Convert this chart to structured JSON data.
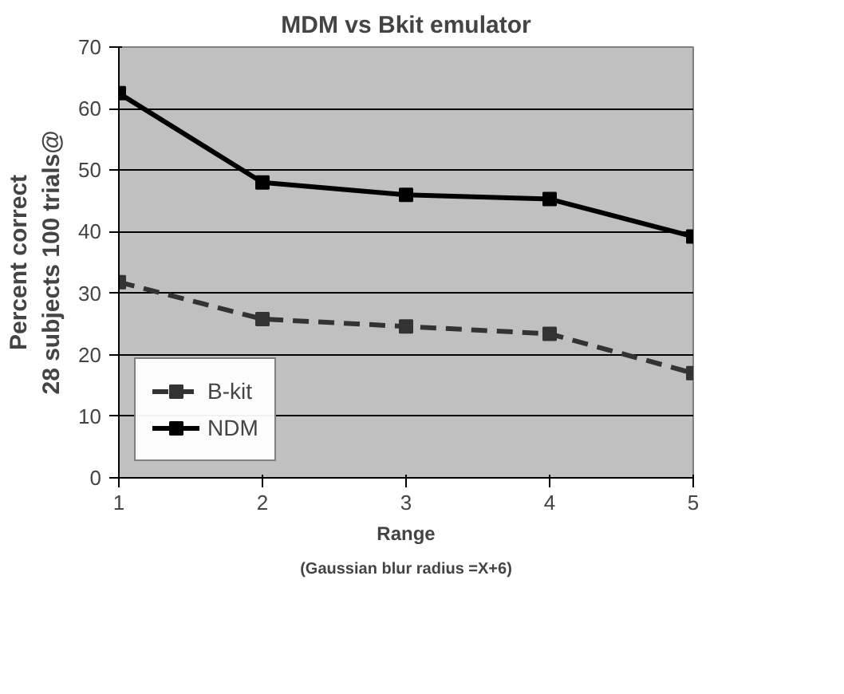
{
  "chart_data": {
    "type": "line",
    "title": "MDM vs Bkit emulator",
    "xlabel": "Range",
    "ylabel": "Percent correct\n28 subjects 100 trials@",
    "annotations": [
      "(Gaussian blur radius =X+6)"
    ],
    "x": [
      1,
      2,
      3,
      4,
      5
    ],
    "xlim": [
      1,
      5
    ],
    "xticks": [
      1,
      2,
      3,
      4,
      5
    ],
    "ylim": [
      0,
      70
    ],
    "yticks": [
      0,
      10,
      20,
      30,
      40,
      50,
      60,
      70
    ],
    "series": [
      {
        "name": "B-kit",
        "color": "#333333",
        "line_style": "dashed",
        "values": [
          31.8,
          25.8,
          24.6,
          23.4,
          17
        ]
      },
      {
        "name": "NDM",
        "color": "#000000",
        "line_style": "solid",
        "values": [
          62.5,
          48,
          46,
          45.3,
          39.2
        ]
      }
    ],
    "marker": "square",
    "grid": "y",
    "legend": "bottom left"
  }
}
